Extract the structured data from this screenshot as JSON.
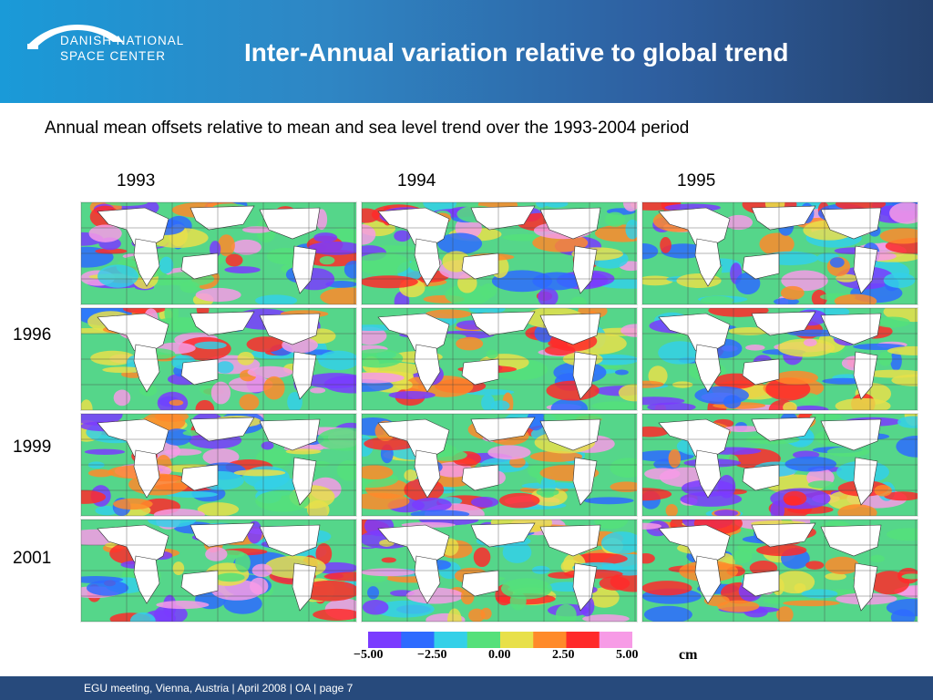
{
  "header": {
    "logo_line1": "DANISH NATIONAL",
    "logo_line2": "SPACE CENTER",
    "title": "Inter-Annual variation relative to global trend"
  },
  "subtitle": "Annual mean offsets relative to mean and sea level trend over the 1993-2004 period",
  "columns": [
    "1993",
    "1994",
    "1995"
  ],
  "rows": [
    "1996",
    "1999",
    "2001"
  ],
  "colorbar": {
    "ticks": [
      "−5.00",
      "−2.50",
      "0.00",
      "2.50",
      "5.00"
    ],
    "unit": "cm",
    "colors": [
      "#7a3bff",
      "#2e6bff",
      "#34d0e8",
      "#55e07a",
      "#e8e04a",
      "#ff8a2a",
      "#ff2a2a",
      "#f79be6"
    ]
  },
  "footer": "EGU meeting, Vienna, Austria  | April  2008 | OA | page 7",
  "colors": {
    "header_start": "#1a9ad8",
    "header_end": "#25426f",
    "footer": "#274a7c"
  }
}
